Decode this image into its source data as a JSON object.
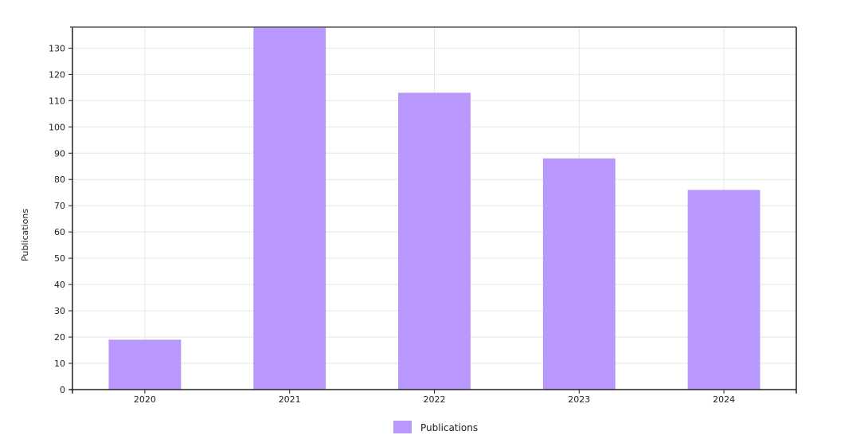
{
  "chart_data": {
    "type": "bar",
    "categories": [
      "2020",
      "2021",
      "2022",
      "2023",
      "2024"
    ],
    "series": [
      {
        "name": "Publications",
        "values": [
          19,
          138,
          113,
          88,
          76
        ]
      }
    ],
    "title": "",
    "xlabel": "",
    "ylabel": "Publications",
    "ylim": [
      0,
      138
    ],
    "yticks": [
      0,
      10,
      20,
      30,
      40,
      50,
      60,
      70,
      80,
      90,
      100,
      110,
      120,
      130
    ],
    "grid": true,
    "legend": "bottom-center",
    "bar_color": "#b898fc"
  }
}
